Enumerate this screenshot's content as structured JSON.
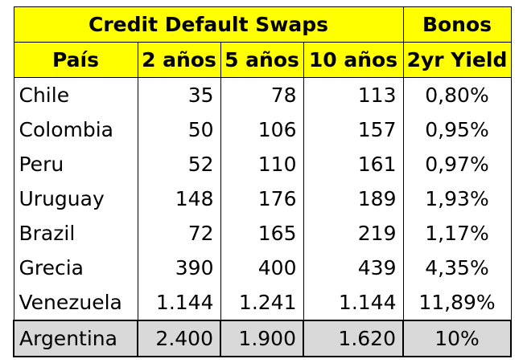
{
  "header": {
    "group_cds": "Credit Default Swaps",
    "group_bonds": "Bonos",
    "columns": [
      "País",
      "2 años",
      "5 años",
      "10 años",
      "2yr Yield"
    ]
  },
  "rows": [
    {
      "country": "Chile",
      "y2": "35",
      "y5": "78",
      "y10": "113",
      "yield": "0,80%"
    },
    {
      "country": "Colombia",
      "y2": "50",
      "y5": "106",
      "y10": "157",
      "yield": "0,95%"
    },
    {
      "country": "Peru",
      "y2": "52",
      "y5": "110",
      "y10": "161",
      "yield": "0,97%"
    },
    {
      "country": "Uruguay",
      "y2": "148",
      "y5": "176",
      "y10": "189",
      "yield": "1,93%"
    },
    {
      "country": "Brazil",
      "y2": "72",
      "y5": "165",
      "y10": "219",
      "yield": "1,17%"
    },
    {
      "country": "Grecia",
      "y2": "390",
      "y5": "400",
      "y10": "439",
      "yield": "4,35%"
    },
    {
      "country": "Venezuela",
      "y2": "1.144",
      "y5": "1.241",
      "y10": "1.144",
      "yield": "11,89%"
    },
    {
      "country": "Argentina",
      "y2": "2.400",
      "y5": "1.900",
      "y10": "1.620",
      "yield": "10%"
    }
  ],
  "colors": {
    "header_bg": "#ffff00",
    "highlight_row_bg": "#d9d9d9"
  }
}
